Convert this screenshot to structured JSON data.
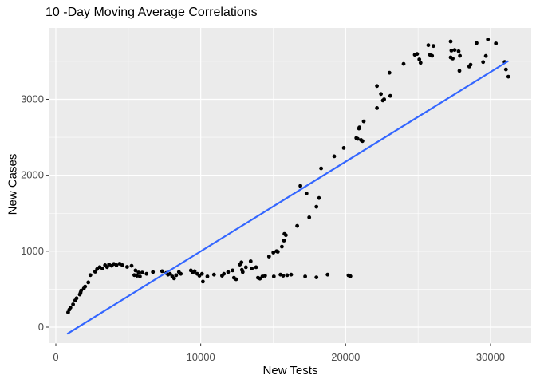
{
  "chart_data": {
    "type": "scatter",
    "title": "10 -Day Moving Average Correlations",
    "xlabel": "New Tests",
    "ylabel": "New Cases",
    "x_ticks": [
      0,
      10000,
      20000,
      30000
    ],
    "y_ticks": [
      0,
      1000,
      2000,
      3000
    ],
    "x_minor_gridlines": [
      5000,
      15000,
      25000
    ],
    "y_minor_gridlines": [
      500,
      1500,
      2500,
      3500
    ],
    "xlim": [
      -440,
      32810
    ],
    "ylim": [
      -210,
      3940
    ],
    "grid": "on",
    "legend_position": "none",
    "colors": {
      "panel_bg": "#EBEBEB",
      "grid": "#FFFFFF",
      "point": "#000000",
      "trend": "#3366FF",
      "tick_label": "#4D4D4D",
      "tick_mark": "#333333"
    },
    "trend_line": {
      "x1": 820,
      "y1": -85,
      "x2": 31190,
      "y2": 3500
    },
    "points": [
      [
        850,
        195
      ],
      [
        930,
        230
      ],
      [
        1010,
        258
      ],
      [
        1190,
        300
      ],
      [
        1340,
        352
      ],
      [
        1430,
        380
      ],
      [
        1650,
        430
      ],
      [
        1705,
        455
      ],
      [
        1748,
        482
      ],
      [
        1930,
        510
      ],
      [
        2020,
        535
      ],
      [
        2240,
        590
      ],
      [
        2385,
        685
      ],
      [
        2715,
        730
      ],
      [
        2845,
        765
      ],
      [
        3030,
        790
      ],
      [
        3210,
        772
      ],
      [
        3395,
        815
      ],
      [
        3540,
        790
      ],
      [
        3670,
        825
      ],
      [
        3855,
        808
      ],
      [
        4000,
        832
      ],
      [
        4185,
        815
      ],
      [
        4405,
        835
      ],
      [
        4590,
        815
      ],
      [
        4920,
        793
      ],
      [
        5230,
        808
      ],
      [
        5415,
        685
      ],
      [
        5500,
        747
      ],
      [
        5600,
        677
      ],
      [
        5710,
        720
      ],
      [
        5800,
        667
      ],
      [
        5965,
        719
      ],
      [
        6260,
        702
      ],
      [
        6700,
        726
      ],
      [
        7340,
        737
      ],
      [
        7615,
        712
      ],
      [
        7745,
        691
      ],
      [
        7890,
        702
      ],
      [
        8040,
        667
      ],
      [
        8165,
        642
      ],
      [
        8310,
        684
      ],
      [
        8495,
        726
      ],
      [
        8625,
        702
      ],
      [
        9320,
        747
      ],
      [
        9450,
        719
      ],
      [
        9580,
        737
      ],
      [
        9760,
        702
      ],
      [
        9910,
        677
      ],
      [
        10090,
        702
      ],
      [
        10150,
        600
      ],
      [
        10460,
        667
      ],
      [
        10915,
        691
      ],
      [
        11470,
        677
      ],
      [
        11600,
        702
      ],
      [
        11890,
        726
      ],
      [
        12200,
        747
      ],
      [
        12295,
        650
      ],
      [
        12440,
        630
      ],
      [
        12700,
        824
      ],
      [
        12810,
        853
      ],
      [
        12845,
        754
      ],
      [
        12900,
        726
      ],
      [
        13120,
        789
      ],
      [
        13450,
        867
      ],
      [
        13525,
        772
      ],
      [
        13820,
        789
      ],
      [
        13950,
        650
      ],
      [
        14090,
        639
      ],
      [
        14260,
        667
      ],
      [
        14440,
        677
      ],
      [
        15045,
        667
      ],
      [
        15505,
        691
      ],
      [
        15690,
        677
      ],
      [
        15965,
        684
      ],
      [
        16240,
        691
      ],
      [
        17210,
        667
      ],
      [
        17985,
        656
      ],
      [
        18755,
        691
      ],
      [
        20200,
        682
      ],
      [
        20330,
        670
      ],
      [
        14715,
        930
      ],
      [
        15010,
        982
      ],
      [
        15230,
        1000
      ],
      [
        15320,
        993
      ],
      [
        15600,
        1060
      ],
      [
        15745,
        1140
      ],
      [
        15780,
        1228
      ],
      [
        15875,
        1211
      ],
      [
        16660,
        1333
      ],
      [
        16880,
        1860
      ],
      [
        17305,
        1760
      ],
      [
        17490,
        1446
      ],
      [
        17985,
        1586
      ],
      [
        18165,
        1700
      ],
      [
        18310,
        2090
      ],
      [
        19210,
        2250
      ],
      [
        19875,
        2360
      ],
      [
        20735,
        2490
      ],
      [
        20830,
        2480
      ],
      [
        20920,
        2615
      ],
      [
        20955,
        2630
      ],
      [
        21065,
        2465
      ],
      [
        21160,
        2450
      ],
      [
        21250,
        2710
      ],
      [
        22165,
        2885
      ],
      [
        22165,
        3175
      ],
      [
        22440,
        3070
      ],
      [
        22570,
        2985
      ],
      [
        22660,
        3000
      ],
      [
        23030,
        3350
      ],
      [
        23085,
        3045
      ],
      [
        24000,
        3466
      ],
      [
        24770,
        3586
      ],
      [
        24930,
        3596
      ],
      [
        25085,
        3525
      ],
      [
        25175,
        3480
      ],
      [
        25710,
        3712
      ],
      [
        25820,
        3586
      ],
      [
        25965,
        3572
      ],
      [
        26060,
        3702
      ],
      [
        27250,
        3761
      ],
      [
        27300,
        3642
      ],
      [
        27250,
        3551
      ],
      [
        27395,
        3537
      ],
      [
        27525,
        3649
      ],
      [
        27800,
        3632
      ],
      [
        27890,
        3572
      ],
      [
        27855,
        3375
      ],
      [
        28535,
        3431
      ],
      [
        28625,
        3456
      ],
      [
        29040,
        3740
      ],
      [
        29490,
        3490
      ],
      [
        29680,
        3570
      ],
      [
        29820,
        3789
      ],
      [
        30370,
        3735
      ],
      [
        30975,
        3491
      ],
      [
        31065,
        3393
      ],
      [
        31230,
        3298
      ]
    ]
  }
}
